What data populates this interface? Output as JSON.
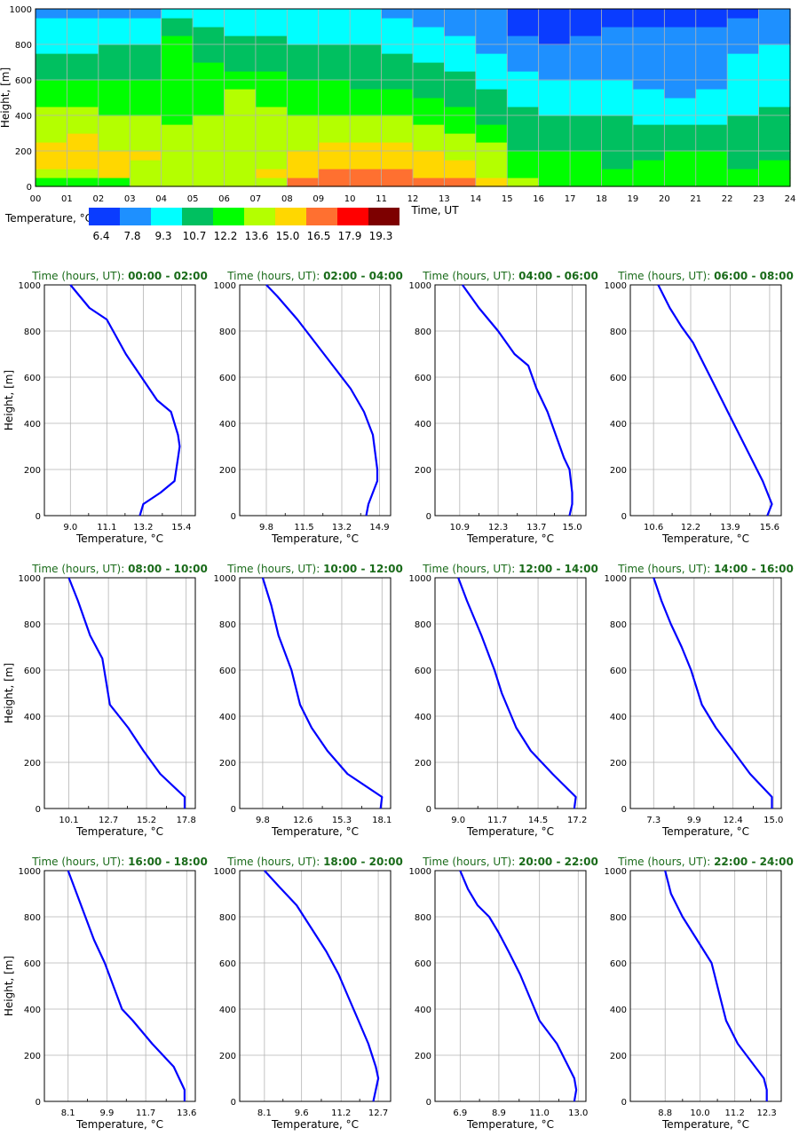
{
  "figure": {
    "heatmap": {
      "ylabel": "Height, [m]",
      "xlabel": "Time, UT",
      "yticks": [
        "0",
        "200",
        "400",
        "600",
        "800",
        "1000"
      ],
      "xticks": [
        "00",
        "01",
        "02",
        "03",
        "04",
        "05",
        "06",
        "07",
        "08",
        "09",
        "10",
        "11",
        "12",
        "13",
        "14",
        "15",
        "16",
        "17",
        "18",
        "19",
        "20",
        "21",
        "22",
        "23",
        "24"
      ],
      "legend_title": "Temperature, °C",
      "legend_labels": [
        "6.4",
        "7.8",
        "9.3",
        "10.7",
        "12.2",
        "13.6",
        "15.0",
        "16.5",
        "17.9",
        "19.3"
      ],
      "legend_colors": [
        "#0a3cff",
        "#1e90ff",
        "#00ffff",
        "#00c060",
        "#00ff00",
        "#b4ff00",
        "#ffd700",
        "#ff7030",
        "#ff0000",
        "#7d0000"
      ]
    },
    "profile_axis": {
      "ylabel": "Height, [m]",
      "xlabel": "Temperature, °C",
      "yticks": [
        "0",
        "200",
        "400",
        "600",
        "800",
        "1000"
      ]
    },
    "title_prefix": "Time (hours, UT):",
    "line_color": "#0000ff",
    "title_color": "#1a6b1a"
  },
  "chart_data": [
    {
      "type": "heatmap",
      "x": [
        0,
        1,
        2,
        3,
        4,
        5,
        6,
        7,
        8,
        9,
        10,
        11,
        12,
        13,
        14,
        15,
        16,
        17,
        18,
        19,
        20,
        21,
        22,
        23
      ],
      "y": [
        25,
        75,
        125,
        175,
        225,
        275,
        325,
        375,
        425,
        475,
        525,
        575,
        625,
        675,
        725,
        775,
        825,
        875,
        925,
        975
      ],
      "xlim": [
        0,
        24
      ],
      "ylim": [
        0,
        1000
      ],
      "colorbar_levels": [
        6.4,
        7.8,
        9.3,
        10.7,
        12.2,
        13.6,
        15.0,
        16.5,
        17.9,
        19.3
      ],
      "z": [
        [
          13.5,
          13.3,
          13.5,
          14.0,
          13.8,
          13.9,
          14.2,
          14.8,
          16.7,
          17.2,
          17.1,
          17.4,
          17.0,
          16.8,
          15.2,
          13.6,
          13.4,
          13.2,
          12.6,
          12.7,
          12.9,
          12.8,
          12.5,
          12.4
        ],
        [
          14.9,
          14.8,
          15.0,
          14.6,
          14.4,
          14.1,
          14.6,
          15.2,
          16.2,
          16.9,
          16.8,
          16.9,
          16.3,
          16.2,
          14.9,
          13.4,
          13.3,
          13.1,
          12.4,
          12.5,
          12.6,
          12.7,
          12.3,
          12.3
        ],
        [
          15.4,
          15.1,
          15.2,
          14.9,
          14.5,
          14.3,
          14.8,
          14.8,
          15.7,
          16.1,
          16.4,
          16.2,
          15.9,
          15.5,
          14.6,
          13.0,
          12.9,
          12.6,
          12.1,
          12.3,
          12.4,
          12.5,
          12.1,
          12.2
        ],
        [
          15.5,
          15.3,
          15.1,
          15.0,
          14.7,
          14.4,
          14.8,
          14.7,
          15.2,
          15.7,
          16.2,
          15.7,
          15.4,
          14.9,
          14.2,
          12.4,
          12.4,
          12.3,
          11.8,
          12.1,
          12.2,
          12.2,
          11.9,
          12.0
        ],
        [
          15.3,
          15.3,
          14.9,
          14.9,
          14.8,
          14.3,
          14.4,
          14.4,
          14.5,
          15.2,
          15.4,
          15.1,
          14.7,
          14.3,
          13.7,
          12.0,
          11.8,
          11.8,
          11.6,
          11.8,
          11.8,
          11.9,
          11.6,
          11.8
        ],
        [
          14.9,
          15.0,
          14.5,
          14.5,
          14.6,
          14.2,
          14.2,
          14.2,
          14.2,
          14.9,
          14.8,
          14.5,
          14.1,
          13.8,
          13.1,
          11.6,
          11.4,
          11.4,
          11.3,
          11.4,
          11.4,
          11.5,
          11.3,
          11.6
        ],
        [
          14.6,
          14.7,
          14.0,
          14.1,
          14.1,
          14.0,
          13.9,
          14.0,
          14.0,
          14.5,
          14.4,
          14.1,
          13.6,
          13.3,
          12.6,
          11.3,
          11.1,
          11.0,
          11.0,
          11.0,
          10.9,
          11.1,
          11.0,
          11.4
        ],
        [
          14.3,
          14.3,
          13.7,
          13.6,
          13.5,
          13.8,
          14.0,
          13.9,
          13.8,
          13.9,
          13.8,
          13.6,
          13.1,
          12.9,
          12.0,
          11.0,
          10.8,
          10.7,
          10.7,
          10.5,
          10.4,
          10.6,
          10.7,
          11.1
        ],
        [
          13.9,
          13.9,
          13.4,
          13.1,
          13.5,
          13.5,
          14.1,
          14.0,
          13.5,
          13.5,
          13.3,
          13.1,
          12.7,
          12.4,
          11.5,
          10.7,
          10.5,
          10.3,
          10.3,
          10.0,
          9.9,
          10.1,
          10.3,
          10.9
        ],
        [
          13.5,
          13.4,
          13.2,
          12.9,
          13.4,
          13.3,
          14.0,
          13.4,
          13.1,
          13.0,
          12.8,
          12.6,
          12.2,
          11.9,
          11.1,
          10.4,
          10.2,
          10.0,
          9.9,
          9.6,
          9.5,
          9.7,
          10.0,
          10.6
        ],
        [
          13.0,
          12.9,
          12.9,
          12.6,
          13.3,
          13.0,
          13.6,
          12.9,
          12.7,
          12.6,
          12.4,
          12.2,
          11.8,
          11.4,
          10.8,
          10.1,
          9.9,
          9.8,
          9.6,
          9.3,
          9.2,
          9.4,
          9.8,
          10.4
        ],
        [
          12.4,
          12.3,
          12.5,
          12.4,
          13.1,
          12.8,
          13.0,
          12.5,
          12.3,
          12.2,
          12.0,
          11.8,
          11.4,
          11.0,
          10.5,
          9.7,
          9.5,
          9.5,
          9.4,
          9.1,
          9.0,
          9.2,
          9.6,
          10.2
        ],
        [
          11.9,
          11.8,
          12.0,
          12.1,
          13.0,
          12.6,
          12.4,
          12.2,
          12.0,
          11.9,
          11.7,
          11.5,
          11.0,
          10.7,
          10.1,
          9.3,
          9.1,
          9.2,
          9.2,
          8.9,
          8.8,
          9.1,
          9.5,
          10.0
        ],
        [
          11.5,
          11.4,
          11.6,
          11.8,
          12.8,
          12.4,
          12.0,
          11.9,
          11.6,
          11.5,
          11.4,
          11.2,
          10.7,
          10.4,
          9.8,
          8.9,
          8.7,
          8.9,
          9.0,
          8.8,
          8.7,
          9.0,
          9.4,
          9.8
        ],
        [
          11.0,
          11.0,
          11.2,
          11.4,
          12.5,
          12.1,
          11.7,
          11.6,
          11.3,
          11.2,
          11.0,
          10.8,
          10.4,
          10.1,
          9.5,
          8.6,
          8.4,
          8.6,
          8.8,
          8.7,
          8.6,
          8.9,
          9.3,
          9.6
        ],
        [
          10.6,
          10.6,
          10.8,
          11.0,
          12.3,
          11.8,
          11.3,
          11.3,
          10.9,
          10.9,
          10.7,
          10.5,
          10.1,
          9.8,
          9.2,
          8.3,
          8.1,
          8.3,
          8.6,
          8.5,
          8.5,
          8.7,
          9.1,
          9.4
        ],
        [
          10.1,
          10.2,
          10.4,
          10.5,
          12.2,
          11.3,
          10.9,
          10.9,
          10.5,
          10.5,
          10.3,
          10.1,
          9.7,
          9.5,
          8.9,
          7.9,
          7.7,
          8.0,
          8.3,
          8.2,
          8.2,
          8.3,
          8.9,
          9.2
        ],
        [
          9.7,
          9.8,
          9.9,
          10.0,
          11.8,
          10.9,
          10.5,
          10.5,
          10.2,
          10.1,
          10.0,
          9.8,
          9.4,
          9.2,
          8.6,
          7.4,
          7.1,
          7.6,
          7.9,
          7.9,
          7.8,
          7.9,
          8.5,
          9.0
        ],
        [
          9.3,
          9.3,
          9.4,
          9.5,
          11.3,
          10.4,
          10.0,
          10.1,
          9.8,
          9.8,
          9.6,
          9.4,
          9.1,
          8.9,
          8.3,
          7.0,
          6.6,
          7.2,
          7.4,
          7.6,
          7.1,
          7.2,
          8.1,
          8.8
        ],
        [
          8.8,
          8.8,
          8.9,
          9.0,
          10.6,
          10.0,
          9.6,
          9.7,
          9.5,
          9.4,
          9.3,
          9.1,
          8.8,
          8.6,
          8.0,
          6.7,
          6.3,
          6.9,
          7.0,
          7.2,
          6.6,
          6.7,
          7.6,
          8.6
        ]
      ]
    },
    {
      "type": "line",
      "title": "00:00 - 02:00",
      "xlabel": "Temperature, °C",
      "ylabel": "Height, [m]",
      "xticks": [
        9.0,
        11.1,
        13.2,
        15.4
      ],
      "xlim": [
        7.5,
        16.2
      ],
      "ylim": [
        0,
        1000
      ],
      "x": [
        13.0,
        13.2,
        14.2,
        15.0,
        15.2,
        15.3,
        15.2,
        14.8,
        14.0,
        13.1,
        12.2,
        11.1,
        10.1,
        9.0
      ],
      "y": [
        0,
        50,
        100,
        150,
        250,
        300,
        350,
        450,
        500,
        600,
        700,
        850,
        900,
        1000
      ]
    },
    {
      "type": "line",
      "title": "02:00 - 04:00",
      "xlabel": "Temperature, °C",
      "ylabel": "Height, [m]",
      "xticks": [
        9.8,
        11.5,
        13.2,
        14.9
      ],
      "xlim": [
        8.6,
        15.4
      ],
      "ylim": [
        0,
        1000
      ],
      "x": [
        14.3,
        14.4,
        14.6,
        14.8,
        14.8,
        14.6,
        14.2,
        13.6,
        12.8,
        12.0,
        11.2,
        10.3,
        9.8
      ],
      "y": [
        0,
        50,
        100,
        150,
        200,
        350,
        450,
        550,
        650,
        750,
        850,
        950,
        1000
      ]
    },
    {
      "type": "line",
      "title": "04:00 - 06:00",
      "xlabel": "Temperature, °C",
      "ylabel": "Height, [m]",
      "xticks": [
        10.9,
        12.3,
        13.7,
        15.0
      ],
      "xlim": [
        10.0,
        15.5
      ],
      "ylim": [
        0,
        1000
      ],
      "x": [
        14.9,
        15.0,
        15.0,
        14.9,
        14.7,
        14.4,
        14.1,
        13.7,
        13.4,
        12.9,
        12.3,
        11.6,
        11.0
      ],
      "y": [
        0,
        50,
        100,
        200,
        250,
        350,
        450,
        550,
        650,
        700,
        800,
        900,
        1000
      ]
    },
    {
      "type": "line",
      "title": "06:00 - 08:00",
      "xlabel": "Temperature, °C",
      "ylabel": "Height, [m]",
      "xticks": [
        10.6,
        12.2,
        13.9,
        15.6
      ],
      "xlim": [
        9.6,
        16.1
      ],
      "ylim": [
        0,
        1000
      ],
      "x": [
        15.5,
        15.7,
        15.3,
        14.8,
        14.3,
        13.8,
        13.3,
        12.8,
        12.3,
        11.8,
        11.3,
        10.8
      ],
      "y": [
        0,
        50,
        150,
        250,
        350,
        450,
        550,
        650,
        750,
        820,
        900,
        1000
      ]
    },
    {
      "type": "line",
      "title": "08:00 - 10:00",
      "xlabel": "Temperature, °C",
      "ylabel": "Height, [m]",
      "xticks": [
        10.1,
        12.7,
        15.2,
        17.8
      ],
      "xlim": [
        8.5,
        18.4
      ],
      "ylim": [
        0,
        1000
      ],
      "x": [
        17.7,
        17.7,
        16.1,
        15.0,
        14.0,
        12.8,
        12.3,
        11.5,
        10.7,
        10.1
      ],
      "y": [
        0,
        50,
        150,
        250,
        350,
        450,
        650,
        750,
        900,
        1000
      ]
    },
    {
      "type": "line",
      "title": "10:00 - 12:00",
      "xlabel": "Temperature, °C",
      "ylabel": "Height, [m]",
      "xticks": [
        9.8,
        12.6,
        15.3,
        18.1
      ],
      "xlim": [
        8.2,
        18.7
      ],
      "ylim": [
        0,
        1000
      ],
      "x": [
        18.0,
        18.1,
        15.7,
        14.3,
        13.2,
        12.4,
        11.8,
        10.9,
        10.4,
        9.8
      ],
      "y": [
        0,
        50,
        150,
        250,
        350,
        450,
        600,
        750,
        880,
        1000
      ]
    },
    {
      "type": "line",
      "title": "12:00 - 14:00",
      "xlabel": "Temperature, °C",
      "ylabel": "Height, [m]",
      "xticks": [
        9.0,
        11.7,
        14.5,
        17.2
      ],
      "xlim": [
        7.4,
        17.8
      ],
      "ylim": [
        0,
        1000
      ],
      "x": [
        17.0,
        17.1,
        15.5,
        14.0,
        13.0,
        12.0,
        11.5,
        10.6,
        9.6,
        9.0
      ],
      "y": [
        0,
        50,
        150,
        250,
        350,
        500,
        600,
        750,
        900,
        1000
      ]
    },
    {
      "type": "line",
      "title": "14:00 - 16:00",
      "xlabel": "Temperature, °C",
      "ylabel": "Height, [m]",
      "xticks": [
        7.3,
        9.9,
        12.4,
        15.0
      ],
      "xlim": [
        5.8,
        15.5
      ],
      "ylim": [
        0,
        1000
      ],
      "x": [
        14.9,
        14.9,
        13.5,
        12.4,
        11.3,
        10.4,
        9.7,
        9.1,
        8.4,
        7.8,
        7.3
      ],
      "y": [
        0,
        50,
        150,
        250,
        350,
        450,
        600,
        700,
        800,
        900,
        1000
      ]
    },
    {
      "type": "line",
      "title": "16:00 - 18:00",
      "xlabel": "Temperature, °C",
      "ylabel": "Height, [m]",
      "xticks": [
        8.1,
        9.9,
        11.7,
        13.6
      ],
      "xlim": [
        7.0,
        14.0
      ],
      "ylim": [
        0,
        1000
      ],
      "x": [
        13.5,
        13.5,
        13.0,
        12.0,
        11.1,
        10.6,
        10.2,
        9.8,
        9.3,
        8.7,
        8.1
      ],
      "y": [
        0,
        50,
        150,
        250,
        350,
        400,
        500,
        600,
        700,
        850,
        1000
      ]
    },
    {
      "type": "line",
      "title": "18:00 - 20:00",
      "xlabel": "Temperature, °C",
      "ylabel": "Height, [m]",
      "xticks": [
        8.1,
        9.6,
        11.2,
        12.7
      ],
      "xlim": [
        7.1,
        13.2
      ],
      "ylim": [
        0,
        1000
      ],
      "x": [
        12.5,
        12.6,
        12.7,
        12.6,
        12.3,
        11.9,
        11.5,
        11.1,
        10.6,
        10.0,
        9.4,
        8.7,
        8.1
      ],
      "y": [
        0,
        50,
        100,
        150,
        250,
        350,
        450,
        550,
        650,
        750,
        850,
        930,
        1000
      ]
    },
    {
      "type": "line",
      "title": "20:00 - 22:00",
      "xlabel": "Temperature, °C",
      "ylabel": "Height, [m]",
      "xticks": [
        6.9,
        8.9,
        11.0,
        13.0
      ],
      "xlim": [
        5.6,
        13.4
      ],
      "ylim": [
        0,
        1000
      ],
      "x": [
        12.8,
        12.9,
        12.8,
        12.5,
        11.9,
        11.0,
        10.5,
        10.0,
        9.4,
        8.9,
        8.4,
        7.8,
        7.3,
        6.9
      ],
      "y": [
        0,
        50,
        100,
        150,
        250,
        350,
        450,
        550,
        650,
        730,
        800,
        850,
        920,
        1000
      ]
    },
    {
      "type": "line",
      "title": "22:00 - 24:00",
      "xlabel": "Temperature, °C",
      "ylabel": "Height, [m]",
      "xticks": [
        8.8,
        10.0,
        11.2,
        12.3
      ],
      "xlim": [
        7.6,
        12.8
      ],
      "ylim": [
        0,
        1000
      ],
      "x": [
        12.3,
        12.3,
        12.2,
        11.9,
        11.3,
        10.9,
        10.7,
        10.5,
        10.4,
        9.9,
        9.4,
        9.0,
        8.8
      ],
      "y": [
        0,
        50,
        100,
        150,
        250,
        350,
        450,
        550,
        600,
        700,
        800,
        900,
        1000
      ]
    }
  ]
}
